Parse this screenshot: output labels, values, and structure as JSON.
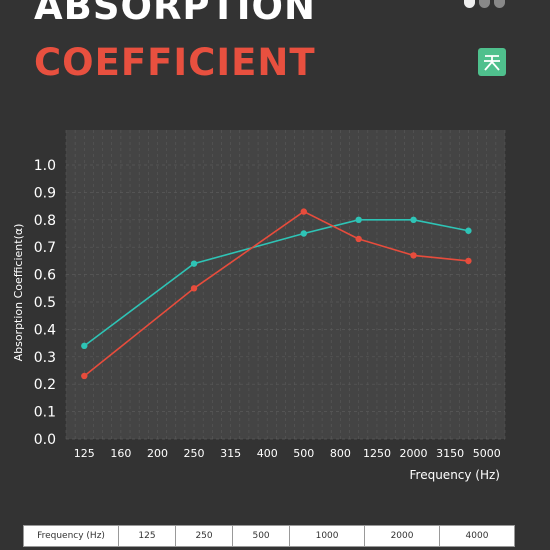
{
  "title_line1": "ABSORPTION",
  "title_line2": "COEFFICIENT",
  "colors": {
    "background": "#333333",
    "plot_bg": "#444444",
    "title_white": "#ffffff",
    "title_red": "#e8503f",
    "series_teal": "#2ec4b6",
    "series_red": "#e74c3c",
    "logo_green": "#4fc08d"
  },
  "chart_data": {
    "type": "line",
    "xlabel": "Frequency (Hz)",
    "ylabel": "Absorption Coefficient(α)",
    "x_tick_labels": [
      "125",
      "160",
      "200",
      "250",
      "315",
      "400",
      "500",
      "800",
      "1250",
      "2000",
      "3150",
      "5000"
    ],
    "ylim": [
      0,
      1.0
    ],
    "y_ticks": [
      "0.0",
      "0.1",
      "0.2",
      "0.3",
      "0.4",
      "0.5",
      "0.6",
      "0.7",
      "0.8",
      "0.9",
      "1.0"
    ],
    "grid": true,
    "series": [
      {
        "x": [
          "125",
          "250",
          "500",
          "1000",
          "2000",
          "4000"
        ],
        "values": [
          0.34,
          0.64,
          0.75,
          0.8,
          0.8,
          0.76
        ],
        "color": "#2ec4b6"
      },
      {
        "x": [
          "125",
          "250",
          "500",
          "1000",
          "2000",
          "4000"
        ],
        "values": [
          0.23,
          0.55,
          0.83,
          0.73,
          0.67,
          0.65
        ],
        "color": "#e74c3c"
      }
    ]
  },
  "table": {
    "header": [
      "Frequency (Hz)",
      "125",
      "250",
      "500",
      "1000",
      "2000",
      "4000"
    ]
  }
}
